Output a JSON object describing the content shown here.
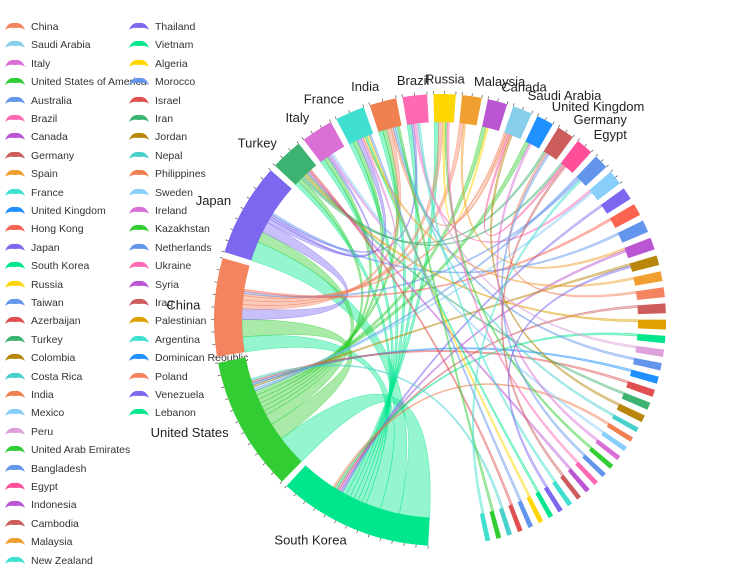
{
  "chart_data": {
    "type": "chord",
    "legend": {
      "placement": "left",
      "entries": [
        {
          "label": "China",
          "color": "#f4845f"
        },
        {
          "label": "Saudi Arabia",
          "color": "#87ceeb"
        },
        {
          "label": "Italy",
          "color": "#da70d6"
        },
        {
          "label": "United States of America",
          "color": "#32cd32"
        },
        {
          "label": "Australia",
          "color": "#6495ed"
        },
        {
          "label": "Brazil",
          "color": "#ff69b4"
        },
        {
          "label": "Canada",
          "color": "#ba55d3"
        },
        {
          "label": "Germany",
          "color": "#cd5c5c"
        },
        {
          "label": "Spain",
          "color": "#f0a030"
        },
        {
          "label": "France",
          "color": "#40e0d0"
        },
        {
          "label": "United Kingdom",
          "color": "#1e90ff"
        },
        {
          "label": "Hong Kong",
          "color": "#fa6450"
        },
        {
          "label": "Japan",
          "color": "#7b68ee"
        },
        {
          "label": "South Korea",
          "color": "#00e68c"
        },
        {
          "label": "Russia",
          "color": "#ffd700"
        },
        {
          "label": "Taiwan",
          "color": "#6495ed"
        },
        {
          "label": "Azerbaijan",
          "color": "#e05050"
        },
        {
          "label": "Turkey",
          "color": "#3cb371"
        },
        {
          "label": "Colombia",
          "color": "#b8860b"
        },
        {
          "label": "Costa Rica",
          "color": "#48d1cc"
        },
        {
          "label": "India",
          "color": "#f08050"
        },
        {
          "label": "Mexico",
          "color": "#87cefa"
        },
        {
          "label": "Peru",
          "color": "#dda0dd"
        },
        {
          "label": "United Arab Emirates",
          "color": "#32cd32"
        },
        {
          "label": "Bangladesh",
          "color": "#6495ed"
        },
        {
          "label": "Egypt",
          "color": "#ff4f9a"
        },
        {
          "label": "Indonesia",
          "color": "#ba55d3"
        },
        {
          "label": "Cambodia",
          "color": "#cd5c5c"
        },
        {
          "label": "Malaysia",
          "color": "#f0a030"
        },
        {
          "label": "New Zealand",
          "color": "#40e0d0"
        },
        {
          "label": "Thailand",
          "color": "#7b68ee"
        },
        {
          "label": "Vietnam",
          "color": "#00e68c"
        },
        {
          "label": "Algeria",
          "color": "#ffd700"
        },
        {
          "label": "Morocco",
          "color": "#6495ed"
        },
        {
          "label": "Israel",
          "color": "#e05050"
        },
        {
          "label": "Iran",
          "color": "#3cb371"
        },
        {
          "label": "Jordan",
          "color": "#b8860b"
        },
        {
          "label": "Nepal",
          "color": "#48d1cc"
        },
        {
          "label": "Philippines",
          "color": "#f08050"
        },
        {
          "label": "Sweden",
          "color": "#87cefa"
        },
        {
          "label": "Ireland",
          "color": "#da70d6"
        },
        {
          "label": "Kazakhstan",
          "color": "#32cd32"
        },
        {
          "label": "Netherlands",
          "color": "#6495ed"
        },
        {
          "label": "Ukraine",
          "color": "#ff69b4"
        },
        {
          "label": "Syria",
          "color": "#ba55d3"
        },
        {
          "label": "Iraq",
          "color": "#cd5c5c"
        },
        {
          "label": "Palestinian",
          "color": "#e0a000"
        },
        {
          "label": "Argentina",
          "color": "#40e0d0"
        },
        {
          "label": "Dominican Reoublic",
          "color": "#1e90ff"
        },
        {
          "label": "Poland",
          "color": "#f4845f"
        },
        {
          "label": "Venezuela",
          "color": "#7b68ee"
        },
        {
          "label": "Lebanon",
          "color": "#00e68c"
        }
      ]
    },
    "segments": [
      {
        "name": "South Korea",
        "color": "#00e68c",
        "label": "South Korea",
        "weight": 63
      },
      {
        "name": "United States",
        "color": "#32cd32",
        "label": "United States",
        "weight": 55
      },
      {
        "name": "China",
        "color": "#f4845f",
        "label": "China",
        "weight": 40
      },
      {
        "name": "Japan",
        "color": "#7b68ee",
        "label": "Japan",
        "weight": 38
      },
      {
        "name": "Turkey",
        "color": "#3cb371",
        "label": "Turkey",
        "weight": 13
      },
      {
        "name": "Italy",
        "color": "#da70d6",
        "label": "Italy",
        "weight": 13
      },
      {
        "name": "France",
        "color": "#40e0d0",
        "label": "France",
        "weight": 12
      },
      {
        "name": "India",
        "color": "#f08050",
        "label": "India",
        "weight": 11
      },
      {
        "name": "Brazil",
        "color": "#ff69b4",
        "label": "Brazil",
        "weight": 10
      },
      {
        "name": "Russia",
        "color": "#ffd700",
        "label": "Russia",
        "weight": 9
      },
      {
        "name": "Malaysia",
        "color": "#f0a030",
        "label": "Malaysia",
        "weight": 8
      },
      {
        "name": "Canada",
        "color": "#ba55d3",
        "label": "Canada",
        "weight": 8
      },
      {
        "name": "Saudi Arabia",
        "color": "#87ceeb",
        "label": "Saudi Arabia",
        "weight": 8
      },
      {
        "name": "United Kingdom",
        "color": "#1e90ff",
        "label": "United Kingdom",
        "weight": 7
      },
      {
        "name": "Germany",
        "color": "#cd5c5c",
        "label": "Germany",
        "weight": 7
      },
      {
        "name": "Egypt",
        "color": "#ff4f9a",
        "label": "Egypt",
        "weight": 7
      },
      {
        "name": "Australia",
        "color": "#6495ed",
        "label": "",
        "weight": 6
      },
      {
        "name": "Mexico",
        "color": "#87cefa",
        "label": "",
        "weight": 6
      },
      {
        "name": "Thailand",
        "color": "#7b68ee",
        "label": "",
        "weight": 5
      },
      {
        "name": "Hong Kong",
        "color": "#fa6450",
        "label": "",
        "weight": 5
      },
      {
        "name": "Taiwan",
        "color": "#6495ed",
        "label": "",
        "weight": 5
      },
      {
        "name": "Indonesia",
        "color": "#ba55d3",
        "label": "",
        "weight": 5
      },
      {
        "name": "Colombia",
        "color": "#b8860b",
        "label": "",
        "weight": 4
      },
      {
        "name": "Spain",
        "color": "#f0a030",
        "label": "",
        "weight": 4
      },
      {
        "name": "Poland",
        "color": "#f4845f",
        "label": "",
        "weight": 4
      },
      {
        "name": "Cambodia",
        "color": "#cd5c5c",
        "label": "",
        "weight": 4
      },
      {
        "name": "Palestinian",
        "color": "#e0a000",
        "label": "",
        "weight": 4
      },
      {
        "name": "Vietnam",
        "color": "#00e68c",
        "label": "",
        "weight": 3
      },
      {
        "name": "Peru",
        "color": "#dda0dd",
        "label": "",
        "weight": 3
      },
      {
        "name": "Bangladesh",
        "color": "#6495ed",
        "label": "",
        "weight": 3
      },
      {
        "name": "Dominican Reoublic",
        "color": "#1e90ff",
        "label": "",
        "weight": 3
      },
      {
        "name": "Israel",
        "color": "#e05050",
        "label": "",
        "weight": 3
      },
      {
        "name": "Iran",
        "color": "#3cb371",
        "label": "",
        "weight": 3
      },
      {
        "name": "Jordan",
        "color": "#b8860b",
        "label": "",
        "weight": 3
      },
      {
        "name": "Nepal",
        "color": "#48d1cc",
        "label": "",
        "weight": 2
      },
      {
        "name": "Philippines",
        "color": "#f08050",
        "label": "",
        "weight": 2
      },
      {
        "name": "Sweden",
        "color": "#87cefa",
        "label": "",
        "weight": 2
      },
      {
        "name": "Ireland",
        "color": "#da70d6",
        "label": "",
        "weight": 2
      },
      {
        "name": "Kazakhstan",
        "color": "#32cd32",
        "label": "",
        "weight": 2
      },
      {
        "name": "Netherlands",
        "color": "#6495ed",
        "label": "",
        "weight": 2
      },
      {
        "name": "Ukraine",
        "color": "#ff69b4",
        "label": "",
        "weight": 2
      },
      {
        "name": "Syria",
        "color": "#ba55d3",
        "label": "",
        "weight": 2
      },
      {
        "name": "Iraq",
        "color": "#cd5c5c",
        "label": "",
        "weight": 2
      },
      {
        "name": "Argentina",
        "color": "#40e0d0",
        "label": "",
        "weight": 2
      },
      {
        "name": "Venezuela",
        "color": "#7b68ee",
        "label": "",
        "weight": 2
      },
      {
        "name": "Lebanon",
        "color": "#00e68c",
        "label": "",
        "weight": 2
      },
      {
        "name": "Algeria",
        "color": "#ffd700",
        "label": "",
        "weight": 2
      },
      {
        "name": "Morocco",
        "color": "#6495ed",
        "label": "",
        "weight": 2
      },
      {
        "name": "Azerbaijan",
        "color": "#e05050",
        "label": "",
        "weight": 2
      },
      {
        "name": "Costa Rica",
        "color": "#48d1cc",
        "label": "",
        "weight": 2
      },
      {
        "name": "United Arab Emirates",
        "color": "#32cd32",
        "label": "",
        "weight": 2
      },
      {
        "name": "New Zealand",
        "color": "#40e0d0",
        "label": "",
        "weight": 2
      }
    ],
    "links": [
      {
        "source": "South Korea",
        "target": "United States",
        "value": 14
      },
      {
        "source": "South Korea",
        "target": "Japan",
        "value": 9
      },
      {
        "source": "South Korea",
        "target": "China",
        "value": 7
      },
      {
        "source": "United States",
        "target": "China",
        "value": 8
      },
      {
        "source": "United States",
        "target": "Japan",
        "value": 5
      },
      {
        "source": "Japan",
        "target": "China",
        "value": 5
      },
      {
        "source": "South Korea",
        "target": "Turkey",
        "value": 2
      },
      {
        "source": "South Korea",
        "target": "Italy",
        "value": 2
      },
      {
        "source": "South Korea",
        "target": "France",
        "value": 2
      },
      {
        "source": "South Korea",
        "target": "India",
        "value": 2
      },
      {
        "source": "South Korea",
        "target": "Brazil",
        "value": 2
      },
      {
        "source": "South Korea",
        "target": "Russia",
        "value": 2
      },
      {
        "source": "United States",
        "target": "Turkey",
        "value": 2
      },
      {
        "source": "United States",
        "target": "Italy",
        "value": 2
      },
      {
        "source": "United States",
        "target": "France",
        "value": 2
      },
      {
        "source": "United States",
        "target": "India",
        "value": 2
      },
      {
        "source": "United States",
        "target": "Canada",
        "value": 2
      },
      {
        "source": "United States",
        "target": "United Kingdom",
        "value": 2
      },
      {
        "source": "China",
        "target": "India",
        "value": 2
      },
      {
        "source": "China",
        "target": "Russia",
        "value": 2
      },
      {
        "source": "China",
        "target": "Malaysia",
        "value": 2
      },
      {
        "source": "China",
        "target": "Saudi Arabia",
        "value": 1
      },
      {
        "source": "Japan",
        "target": "France",
        "value": 2
      },
      {
        "source": "Japan",
        "target": "Italy",
        "value": 1
      },
      {
        "source": "Japan",
        "target": "Brazil",
        "value": 1
      },
      {
        "source": "Turkey",
        "target": "Germany",
        "value": 1
      },
      {
        "source": "Turkey",
        "target": "Egypt",
        "value": 1
      },
      {
        "source": "Italy",
        "target": "France",
        "value": 1
      },
      {
        "source": "India",
        "target": "Saudi Arabia",
        "value": 1
      },
      {
        "source": "Brazil",
        "target": "Mexico",
        "value": 1
      },
      {
        "source": "Russia",
        "target": "Canada",
        "value": 1
      },
      {
        "source": "Malaysia",
        "target": "Indonesia",
        "value": 1
      },
      {
        "source": "Egypt",
        "target": "Saudi Arabia",
        "value": 1
      },
      {
        "source": "Australia",
        "target": "United States",
        "value": 1
      },
      {
        "source": "Australia",
        "target": "China",
        "value": 1
      },
      {
        "source": "Mexico",
        "target": "United States",
        "value": 1
      },
      {
        "source": "Thailand",
        "target": "South Korea",
        "value": 1
      },
      {
        "source": "Hong Kong",
        "target": "China",
        "value": 1
      },
      {
        "source": "Taiwan",
        "target": "Japan",
        "value": 1
      },
      {
        "source": "Indonesia",
        "target": "South Korea",
        "value": 1
      },
      {
        "source": "Colombia",
        "target": "United States",
        "value": 1
      },
      {
        "source": "Spain",
        "target": "France",
        "value": 1
      },
      {
        "source": "Poland",
        "target": "Germany",
        "value": 1
      },
      {
        "source": "Cambodia",
        "target": "South Korea",
        "value": 1
      },
      {
        "source": "Palestinian",
        "target": "Turkey",
        "value": 1
      },
      {
        "source": "Vietnam",
        "target": "South Korea",
        "value": 1
      },
      {
        "source": "Peru",
        "target": "Brazil",
        "value": 1
      },
      {
        "source": "Bangladesh",
        "target": "India",
        "value": 1
      },
      {
        "source": "Dominican Reoublic",
        "target": "United States",
        "value": 1
      },
      {
        "source": "Israel",
        "target": "United States",
        "value": 1
      },
      {
        "source": "Iran",
        "target": "Turkey",
        "value": 1
      },
      {
        "source": "Jordan",
        "target": "Saudi Arabia",
        "value": 1
      },
      {
        "source": "Nepal",
        "target": "India",
        "value": 1
      },
      {
        "source": "Philippines",
        "target": "South Korea",
        "value": 1
      },
      {
        "source": "Sweden",
        "target": "Italy",
        "value": 1
      },
      {
        "source": "Ireland",
        "target": "United Kingdom",
        "value": 1
      },
      {
        "source": "Kazakhstan",
        "target": "Russia",
        "value": 1
      },
      {
        "source": "Netherlands",
        "target": "Germany",
        "value": 1
      },
      {
        "source": "Ukraine",
        "target": "Russia",
        "value": 1
      },
      {
        "source": "Syria",
        "target": "Turkey",
        "value": 1
      },
      {
        "source": "Iraq",
        "target": "Egypt",
        "value": 1
      },
      {
        "source": "Argentina",
        "target": "Brazil",
        "value": 1
      },
      {
        "source": "Venezuela",
        "target": "Colombia",
        "value": 1
      },
      {
        "source": "Lebanon",
        "target": "France",
        "value": 1
      },
      {
        "source": "Algeria",
        "target": "France",
        "value": 1
      },
      {
        "source": "Morocco",
        "target": "France",
        "value": 1
      },
      {
        "source": "Azerbaijan",
        "target": "Turkey",
        "value": 1
      },
      {
        "source": "Costa Rica",
        "target": "United States",
        "value": 1
      },
      {
        "source": "United Arab Emirates",
        "target": "India",
        "value": 1
      },
      {
        "source": "New Zealand",
        "target": "Australia",
        "value": 1
      }
    ]
  }
}
